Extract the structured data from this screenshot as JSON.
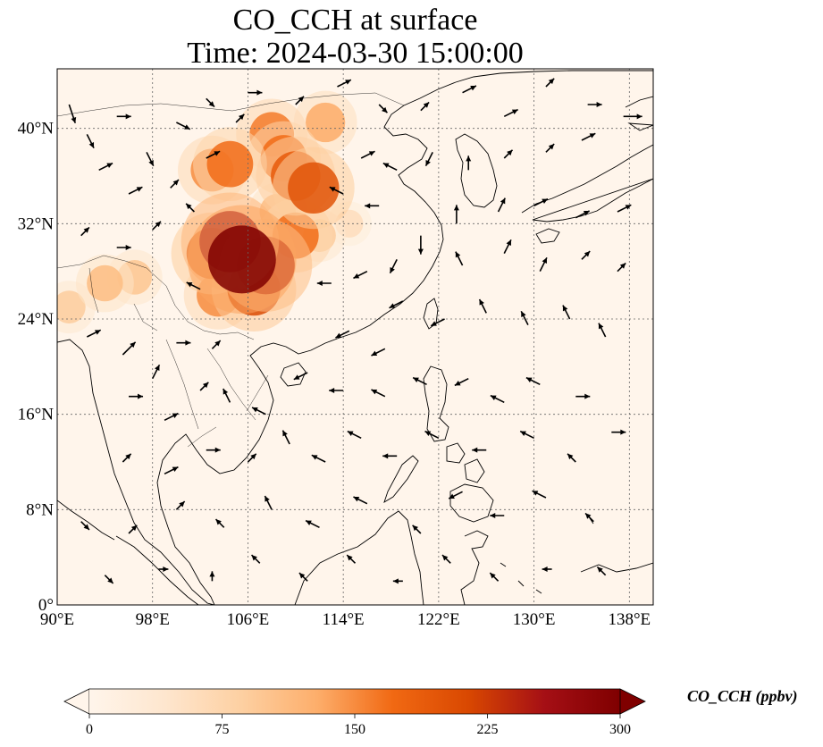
{
  "title": {
    "line1": "CO_CCH at surface",
    "line2": "Time: 2024-03-30 15:00:00"
  },
  "map": {
    "lon_range": [
      90,
      140
    ],
    "lat_range": [
      0,
      45
    ],
    "x_ticks": [
      {
        "value": 90,
        "label": "90°E"
      },
      {
        "value": 98,
        "label": "98°E"
      },
      {
        "value": 106,
        "label": "106°E"
      },
      {
        "value": 114,
        "label": "114°E"
      },
      {
        "value": 122,
        "label": "122°E"
      },
      {
        "value": 130,
        "label": "130°E"
      },
      {
        "value": 138,
        "label": "138°E"
      }
    ],
    "y_ticks": [
      {
        "value": 0,
        "label": "0°"
      },
      {
        "value": 8,
        "label": "8°N"
      },
      {
        "value": 16,
        "label": "16°N"
      },
      {
        "value": 24,
        "label": "24°N"
      },
      {
        "value": 32,
        "label": "32°N"
      },
      {
        "value": 40,
        "label": "40°N"
      }
    ],
    "gridlines": true,
    "background_color": "#fff5eb",
    "plumes": [
      {
        "lon": 105.5,
        "lat": 29.0,
        "value": 300
      },
      {
        "lon": 104.5,
        "lat": 30.5,
        "value": 260
      },
      {
        "lon": 107.5,
        "lat": 28.5,
        "value": 240
      },
      {
        "lon": 103.0,
        "lat": 29.5,
        "value": 200
      },
      {
        "lon": 106.5,
        "lat": 26.5,
        "value": 210
      },
      {
        "lon": 103.5,
        "lat": 26.0,
        "value": 150
      },
      {
        "lon": 110.0,
        "lat": 31.0,
        "value": 170
      },
      {
        "lon": 111.5,
        "lat": 35.0,
        "value": 200
      },
      {
        "lon": 110.0,
        "lat": 36.0,
        "value": 190
      },
      {
        "lon": 109.0,
        "lat": 37.5,
        "value": 170
      },
      {
        "lon": 108.0,
        "lat": 39.5,
        "value": 160
      },
      {
        "lon": 104.5,
        "lat": 37.0,
        "value": 170
      },
      {
        "lon": 103.0,
        "lat": 36.5,
        "value": 150
      },
      {
        "lon": 112.5,
        "lat": 40.5,
        "value": 130
      },
      {
        "lon": 108.5,
        "lat": 33.0,
        "value": 110
      },
      {
        "lon": 112.0,
        "lat": 31.0,
        "value": 90
      },
      {
        "lon": 94.0,
        "lat": 27.0,
        "value": 110
      },
      {
        "lon": 96.5,
        "lat": 27.5,
        "value": 100
      },
      {
        "lon": 91.0,
        "lat": 25.0,
        "value": 90
      },
      {
        "lon": 114.5,
        "lat": 32.0,
        "value": 60
      }
    ],
    "wind_vectors": [
      {
        "lon": 91.0,
        "lat": 42.0,
        "u": 1,
        "v": -3
      },
      {
        "lon": 92.5,
        "lat": 39.5,
        "u": 1,
        "v": -2
      },
      {
        "lon": 95.0,
        "lat": 41.0,
        "u": 2,
        "v": 0
      },
      {
        "lon": 97.5,
        "lat": 38.0,
        "u": 1,
        "v": -2
      },
      {
        "lon": 100.0,
        "lat": 40.5,
        "u": 2,
        "v": -1
      },
      {
        "lon": 93.5,
        "lat": 36.5,
        "u": 2,
        "v": 1
      },
      {
        "lon": 96.0,
        "lat": 34.5,
        "u": 2,
        "v": 1
      },
      {
        "lon": 99.5,
        "lat": 35.0,
        "u": 1,
        "v": 1
      },
      {
        "lon": 101.5,
        "lat": 33.0,
        "u": -1,
        "v": 1
      },
      {
        "lon": 92.0,
        "lat": 31.0,
        "u": 1,
        "v": 1
      },
      {
        "lon": 95.0,
        "lat": 30.0,
        "u": 2,
        "v": 0
      },
      {
        "lon": 98.0,
        "lat": 31.5,
        "u": 1,
        "v": 1
      },
      {
        "lon": 102.0,
        "lat": 26.5,
        "u": -2,
        "v": 1
      },
      {
        "lon": 92.5,
        "lat": 22.5,
        "u": 2,
        "v": 1
      },
      {
        "lon": 95.5,
        "lat": 21.0,
        "u": 2,
        "v": 2
      },
      {
        "lon": 98.0,
        "lat": 19.0,
        "u": 1,
        "v": 2
      },
      {
        "lon": 100.0,
        "lat": 22.0,
        "u": 2,
        "v": 0
      },
      {
        "lon": 103.0,
        "lat": 21.5,
        "u": 1,
        "v": 1
      },
      {
        "lon": 96.0,
        "lat": 17.5,
        "u": 2,
        "v": 0
      },
      {
        "lon": 99.0,
        "lat": 15.5,
        "u": 2,
        "v": 1
      },
      {
        "lon": 102.0,
        "lat": 18.0,
        "u": 1,
        "v": 1
      },
      {
        "lon": 104.5,
        "lat": 17.0,
        "u": -1,
        "v": 2
      },
      {
        "lon": 107.5,
        "lat": 16.0,
        "u": -2,
        "v": 1
      },
      {
        "lon": 95.5,
        "lat": 12.0,
        "u": 1,
        "v": 1
      },
      {
        "lon": 99.0,
        "lat": 11.0,
        "u": 2,
        "v": 1
      },
      {
        "lon": 102.5,
        "lat": 13.0,
        "u": 2,
        "v": 0
      },
      {
        "lon": 106.0,
        "lat": 12.0,
        "u": 1,
        "v": 1
      },
      {
        "lon": 109.5,
        "lat": 13.5,
        "u": -1,
        "v": 2
      },
      {
        "lon": 112.5,
        "lat": 12.0,
        "u": -2,
        "v": 1
      },
      {
        "lon": 115.5,
        "lat": 14.0,
        "u": -2,
        "v": 1
      },
      {
        "lon": 118.5,
        "lat": 12.5,
        "u": -2,
        "v": 0
      },
      {
        "lon": 92.0,
        "lat": 7.0,
        "u": 1,
        "v": -1
      },
      {
        "lon": 96.0,
        "lat": 6.0,
        "u": 1,
        "v": 1
      },
      {
        "lon": 100.0,
        "lat": 8.0,
        "u": 1,
        "v": 1
      },
      {
        "lon": 104.0,
        "lat": 6.5,
        "u": -1,
        "v": 1
      },
      {
        "lon": 108.0,
        "lat": 8.0,
        "u": -1,
        "v": 2
      },
      {
        "lon": 112.0,
        "lat": 6.5,
        "u": -2,
        "v": 1
      },
      {
        "lon": 116.0,
        "lat": 8.5,
        "u": -2,
        "v": 1
      },
      {
        "lon": 120.5,
        "lat": 6.0,
        "u": -1,
        "v": 1
      },
      {
        "lon": 124.0,
        "lat": 9.5,
        "u": -2,
        "v": -1
      },
      {
        "lon": 127.5,
        "lat": 7.5,
        "u": -2,
        "v": 0
      },
      {
        "lon": 131.0,
        "lat": 9.0,
        "u": -2,
        "v": 1
      },
      {
        "lon": 135.0,
        "lat": 7.0,
        "u": -1,
        "v": 1
      },
      {
        "lon": 94.0,
        "lat": 2.5,
        "u": 1,
        "v": -1
      },
      {
        "lon": 98.5,
        "lat": 3.0,
        "u": 1,
        "v": 0
      },
      {
        "lon": 103.0,
        "lat": 2.0,
        "u": 0,
        "v": 1
      },
      {
        "lon": 107.0,
        "lat": 3.5,
        "u": -1,
        "v": 1
      },
      {
        "lon": 111.0,
        "lat": 2.0,
        "u": -1,
        "v": 1
      },
      {
        "lon": 115.0,
        "lat": 3.5,
        "u": -1,
        "v": 1
      },
      {
        "lon": 119.0,
        "lat": 2.0,
        "u": -1,
        "v": 0
      },
      {
        "lon": 123.0,
        "lat": 3.5,
        "u": -1,
        "v": 1
      },
      {
        "lon": 127.0,
        "lat": 2.0,
        "u": -1,
        "v": 1
      },
      {
        "lon": 131.5,
        "lat": 3.0,
        "u": -1,
        "v": 0
      },
      {
        "lon": 136.0,
        "lat": 2.5,
        "u": -1,
        "v": 1
      },
      {
        "lon": 114.5,
        "lat": 23.0,
        "u": -2,
        "v": -1
      },
      {
        "lon": 117.5,
        "lat": 21.5,
        "u": -2,
        "v": -1
      },
      {
        "lon": 111.0,
        "lat": 19.5,
        "u": -2,
        "v": -1
      },
      {
        "lon": 114.0,
        "lat": 18.0,
        "u": -2,
        "v": 0
      },
      {
        "lon": 117.5,
        "lat": 17.5,
        "u": -2,
        "v": 1
      },
      {
        "lon": 121.0,
        "lat": 18.5,
        "u": -2,
        "v": 1
      },
      {
        "lon": 124.5,
        "lat": 19.0,
        "u": -2,
        "v": -1
      },
      {
        "lon": 127.5,
        "lat": 17.0,
        "u": -2,
        "v": 1
      },
      {
        "lon": 130.5,
        "lat": 18.5,
        "u": -2,
        "v": 1
      },
      {
        "lon": 133.5,
        "lat": 17.5,
        "u": 2,
        "v": 0
      },
      {
        "lon": 136.5,
        "lat": 14.5,
        "u": 2,
        "v": 0
      },
      {
        "lon": 122.0,
        "lat": 14.0,
        "u": -2,
        "v": 1
      },
      {
        "lon": 126.0,
        "lat": 13.0,
        "u": -2,
        "v": 0
      },
      {
        "lon": 130.0,
        "lat": 14.0,
        "u": -2,
        "v": 1
      },
      {
        "lon": 133.5,
        "lat": 12.0,
        "u": -1,
        "v": 1
      },
      {
        "lon": 119.0,
        "lat": 25.5,
        "u": -2,
        "v": -1
      },
      {
        "lon": 122.5,
        "lat": 24.0,
        "u": -2,
        "v": -1
      },
      {
        "lon": 126.0,
        "lat": 24.5,
        "u": -1,
        "v": 2
      },
      {
        "lon": 129.5,
        "lat": 23.5,
        "u": -1,
        "v": 2
      },
      {
        "lon": 133.0,
        "lat": 24.0,
        "u": -1,
        "v": 2
      },
      {
        "lon": 136.0,
        "lat": 22.5,
        "u": -1,
        "v": 2
      },
      {
        "lon": 124.0,
        "lat": 28.5,
        "u": -1,
        "v": 2
      },
      {
        "lon": 127.5,
        "lat": 29.5,
        "u": 1,
        "v": 2
      },
      {
        "lon": 130.5,
        "lat": 28.0,
        "u": 1,
        "v": 2
      },
      {
        "lon": 134.0,
        "lat": 29.0,
        "u": 1,
        "v": 1
      },
      {
        "lon": 137.0,
        "lat": 28.0,
        "u": 1,
        "v": 1
      },
      {
        "lon": 118.5,
        "lat": 29.0,
        "u": -1,
        "v": -2
      },
      {
        "lon": 116.0,
        "lat": 28.0,
        "u": -2,
        "v": -1
      },
      {
        "lon": 113.0,
        "lat": 27.0,
        "u": -2,
        "v": 0
      },
      {
        "lon": 120.5,
        "lat": 31.0,
        "u": 0,
        "v": -3
      },
      {
        "lon": 123.5,
        "lat": 32.0,
        "u": 0,
        "v": 3
      },
      {
        "lon": 127.0,
        "lat": 33.0,
        "u": 1,
        "v": 2
      },
      {
        "lon": 130.0,
        "lat": 33.5,
        "u": 2,
        "v": 1
      },
      {
        "lon": 133.5,
        "lat": 32.5,
        "u": 2,
        "v": 1
      },
      {
        "lon": 137.0,
        "lat": 33.0,
        "u": 2,
        "v": 1
      },
      {
        "lon": 117.0,
        "lat": 33.5,
        "u": -2,
        "v": 0
      },
      {
        "lon": 114.0,
        "lat": 34.5,
        "u": -2,
        "v": 1
      },
      {
        "lon": 115.5,
        "lat": 37.5,
        "u": 2,
        "v": 1
      },
      {
        "lon": 118.5,
        "lat": 36.5,
        "u": -2,
        "v": 1
      },
      {
        "lon": 121.5,
        "lat": 38.0,
        "u": -1,
        "v": -2
      },
      {
        "lon": 124.5,
        "lat": 36.5,
        "u": 0,
        "v": 2
      },
      {
        "lon": 127.5,
        "lat": 37.5,
        "u": 1,
        "v": 1
      },
      {
        "lon": 131.0,
        "lat": 38.0,
        "u": 1,
        "v": 1
      },
      {
        "lon": 134.0,
        "lat": 39.0,
        "u": 2,
        "v": 1
      },
      {
        "lon": 137.5,
        "lat": 41.0,
        "u": 3,
        "v": 0
      },
      {
        "lon": 134.5,
        "lat": 42.0,
        "u": 2,
        "v": 0
      },
      {
        "lon": 131.0,
        "lat": 43.5,
        "u": 1,
        "v": 1
      },
      {
        "lon": 127.5,
        "lat": 41.0,
        "u": 2,
        "v": 1
      },
      {
        "lon": 124.0,
        "lat": 43.0,
        "u": 2,
        "v": 1
      },
      {
        "lon": 120.5,
        "lat": 41.5,
        "u": 1,
        "v": 1
      },
      {
        "lon": 117.0,
        "lat": 42.0,
        "u": 1,
        "v": -1
      },
      {
        "lon": 113.5,
        "lat": 43.5,
        "u": 2,
        "v": 1
      },
      {
        "lon": 110.0,
        "lat": 42.0,
        "u": 1,
        "v": 1
      },
      {
        "lon": 106.0,
        "lat": 43.0,
        "u": 2,
        "v": 0
      },
      {
        "lon": 102.5,
        "lat": 42.5,
        "u": 1,
        "v": -1
      },
      {
        "lon": 105.0,
        "lat": 40.5,
        "u": 1,
        "v": 1
      },
      {
        "lon": 102.5,
        "lat": 37.5,
        "u": 2,
        "v": 1
      }
    ]
  },
  "colorbar": {
    "label": "CO_CCH (ppbv)",
    "ticks": [
      {
        "value": 0,
        "label": "0"
      },
      {
        "value": 75,
        "label": "75"
      },
      {
        "value": 150,
        "label": "150"
      },
      {
        "value": 225,
        "label": "225"
      },
      {
        "value": 300,
        "label": "300"
      }
    ],
    "range": [
      0,
      300
    ],
    "colors": [
      "#fff5eb",
      "#fee6ce",
      "#fdd0a2",
      "#fdae6b",
      "#f16913",
      "#d94801",
      "#a50f15",
      "#7f0000"
    ],
    "extend": "both"
  }
}
